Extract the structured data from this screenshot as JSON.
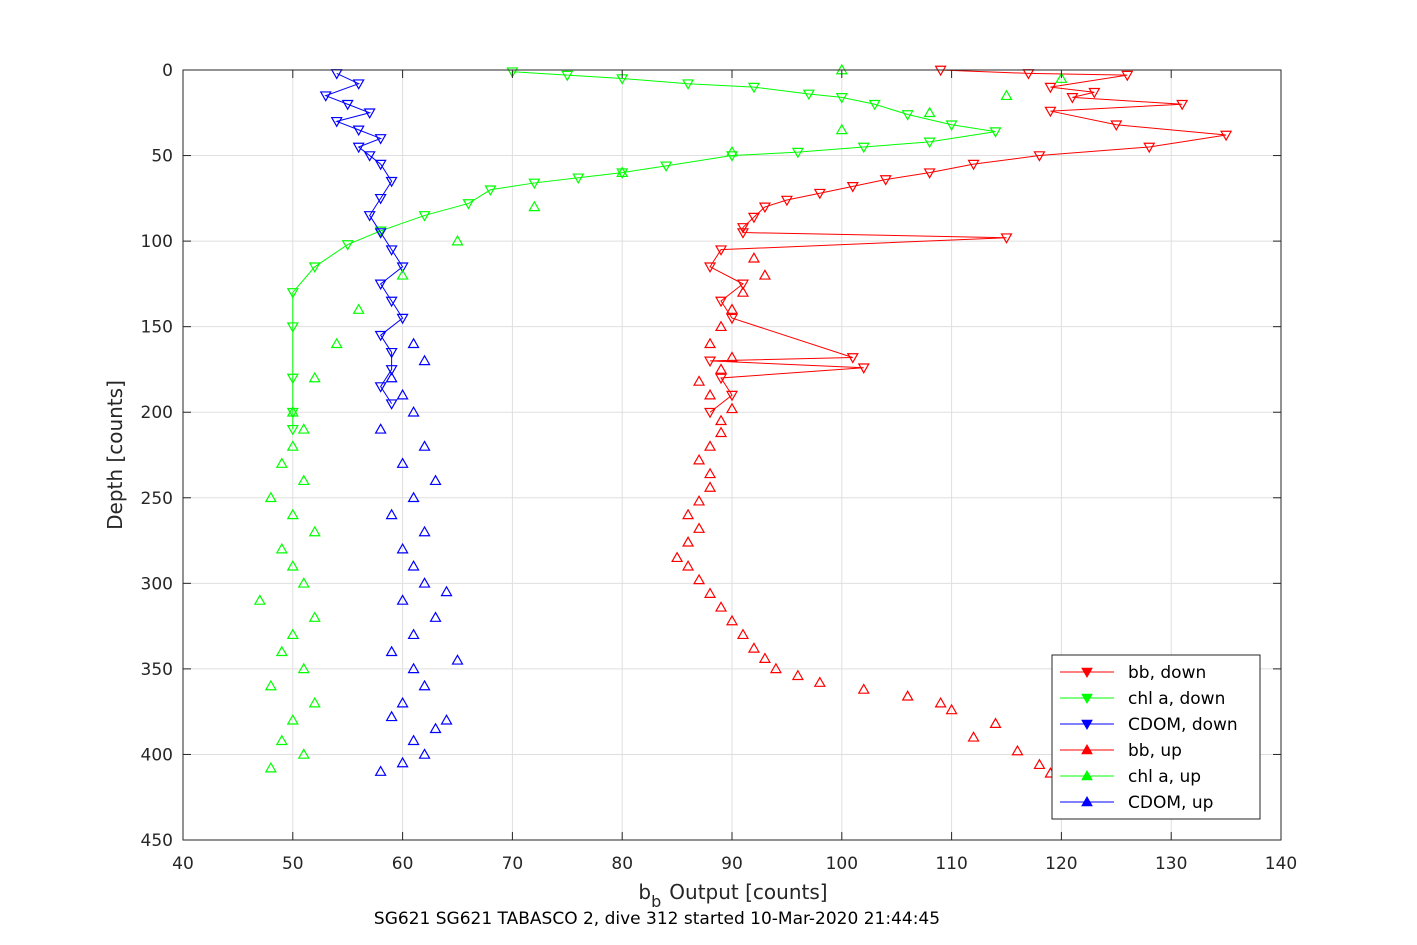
{
  "chart_data": {
    "type": "scatter",
    "title": "",
    "xlabel": "Output [counts]",
    "xlabel_prefix": "b",
    "xlabel_subscript": "b",
    "ylabel": "Depth [counts]",
    "caption": "SG621 SG621 TABASCO 2, dive 312 started 10-Mar-2020 21:44:45",
    "xlim": [
      40,
      140
    ],
    "ylim": [
      0,
      450
    ],
    "y_reversed": true,
    "grid": true,
    "legend_placement": "bottom-right",
    "xticks": [
      "40",
      "50",
      "60",
      "70",
      "80",
      "90",
      "100",
      "110",
      "120",
      "130",
      "140"
    ],
    "yticks": [
      "0",
      "50",
      "100",
      "150",
      "200",
      "250",
      "300",
      "350",
      "400",
      "450"
    ],
    "series": [
      {
        "name": "bb, down",
        "color": "#ff0000",
        "marker": "triangle-down",
        "line": true,
        "x": [
          109,
          117,
          126,
          119,
          123,
          121,
          131,
          119,
          125,
          135,
          128,
          118,
          112,
          108,
          104,
          101,
          98,
          95,
          93,
          92,
          91,
          91,
          115,
          89,
          88,
          91,
          89,
          90,
          101,
          88,
          102,
          89,
          90,
          88
        ],
        "y": [
          0,
          2,
          3,
          10,
          13,
          16,
          20,
          24,
          32,
          38,
          45,
          50,
          55,
          60,
          64,
          68,
          72,
          76,
          80,
          86,
          92,
          95,
          98,
          105,
          115,
          125,
          135,
          145,
          168,
          170,
          174,
          180,
          190,
          200
        ]
      },
      {
        "name": "chl a, down",
        "color": "#00ff00",
        "marker": "triangle-down",
        "line": true,
        "x": [
          70,
          75,
          80,
          86,
          92,
          97,
          100,
          103,
          106,
          110,
          114,
          108,
          102,
          96,
          90,
          84,
          80,
          76,
          72,
          68,
          66,
          62,
          58,
          55,
          52,
          50,
          50,
          50,
          50,
          50
        ],
        "y": [
          1,
          3,
          5,
          8,
          10,
          14,
          16,
          20,
          26,
          32,
          36,
          42,
          45,
          48,
          50,
          56,
          60,
          63,
          66,
          70,
          78,
          85,
          94,
          102,
          115,
          130,
          150,
          180,
          200,
          210
        ]
      },
      {
        "name": "CDOM, down",
        "color": "#0000ff",
        "marker": "triangle-down",
        "line": true,
        "x": [
          54,
          56,
          53,
          55,
          57,
          54,
          56,
          58,
          56,
          57,
          58,
          59,
          58,
          57,
          58,
          59,
          60,
          58,
          59,
          60,
          58,
          59,
          59,
          58,
          59
        ],
        "y": [
          2,
          8,
          15,
          20,
          25,
          30,
          35,
          40,
          45,
          50,
          55,
          65,
          75,
          85,
          95,
          105,
          115,
          125,
          135,
          145,
          155,
          165,
          175,
          185,
          195
        ]
      },
      {
        "name": "bb, up",
        "color": "#ff0000",
        "marker": "triangle-up",
        "line": false,
        "x": [
          119,
          118,
          116,
          112,
          114,
          110,
          109,
          106,
          102,
          98,
          96,
          94,
          93,
          92,
          91,
          90,
          89,
          88,
          87,
          86,
          85,
          86,
          87,
          86,
          87,
          88,
          88,
          87,
          88,
          89,
          89,
          90,
          88,
          87,
          89,
          90,
          88,
          89,
          90,
          91,
          93,
          92
        ],
        "y": [
          411,
          406,
          398,
          390,
          382,
          374,
          370,
          366,
          362,
          358,
          354,
          350,
          344,
          338,
          330,
          322,
          314,
          306,
          298,
          290,
          285,
          276,
          268,
          260,
          252,
          244,
          236,
          228,
          220,
          212,
          205,
          198,
          190,
          182,
          175,
          168,
          160,
          150,
          140,
          130,
          120,
          110
        ]
      },
      {
        "name": "chl a, up",
        "color": "#00ff00",
        "marker": "triangle-up",
        "line": false,
        "x": [
          48,
          51,
          49,
          50,
          52,
          48,
          51,
          49,
          50,
          52,
          47,
          51,
          50,
          49,
          52,
          50,
          48,
          51,
          49,
          50,
          51,
          50,
          52,
          54,
          56,
          60,
          65,
          72,
          80,
          90,
          100,
          108,
          115,
          120,
          100
        ],
        "y": [
          408,
          400,
          392,
          380,
          370,
          360,
          350,
          340,
          330,
          320,
          310,
          300,
          290,
          280,
          270,
          260,
          250,
          240,
          230,
          220,
          210,
          200,
          180,
          160,
          140,
          120,
          100,
          80,
          60,
          48,
          35,
          25,
          15,
          5,
          0
        ]
      },
      {
        "name": "CDOM, up",
        "color": "#0000ff",
        "marker": "triangle-up",
        "line": false,
        "x": [
          58,
          60,
          62,
          61,
          63,
          59,
          64,
          60,
          62,
          61,
          65,
          59,
          61,
          63,
          60,
          62,
          64,
          61,
          60,
          62,
          59,
          61,
          63,
          60,
          62,
          58,
          61,
          60,
          59,
          62,
          61
        ],
        "y": [
          410,
          405,
          400,
          392,
          385,
          378,
          380,
          370,
          360,
          350,
          345,
          340,
          330,
          320,
          310,
          300,
          305,
          290,
          280,
          270,
          260,
          250,
          240,
          230,
          220,
          210,
          200,
          190,
          180,
          170,
          160
        ]
      }
    ]
  }
}
